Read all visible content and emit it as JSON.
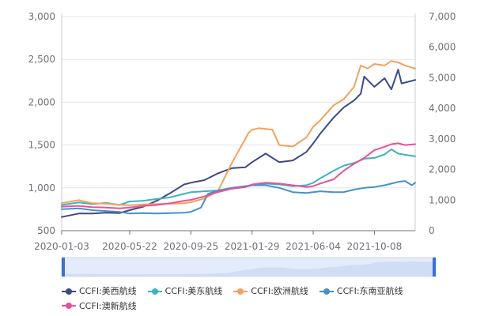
{
  "chart_data": {
    "type": "line",
    "x_start": "2020-01-03",
    "x_end": "2021-12-31",
    "x_ticks": [
      "2020-01-03",
      "2020-05-22",
      "2020-09-25",
      "2021-01-29",
      "2021-06-04",
      "2021-10-08"
    ],
    "y_left": {
      "min": 500,
      "max": 3000,
      "ticks": [
        "500",
        "1,000",
        "1,500",
        "2,000",
        "2,500",
        "3,000"
      ]
    },
    "y_right": {
      "min": 0,
      "max": 7000,
      "ticks": [
        "0",
        "1,000",
        "2,000",
        "3,000",
        "4,000",
        "5,000",
        "6,000",
        "7,000"
      ]
    },
    "grid": true,
    "legend_position": "bottom",
    "series": [
      {
        "name": "CCFI:美西航线",
        "axis": "left",
        "color": "#3d4a86",
        "points": [
          [
            "2020-01-03",
            660
          ],
          [
            "2020-02-07",
            700
          ],
          [
            "2020-03-06",
            700
          ],
          [
            "2020-04-03",
            710
          ],
          [
            "2020-05-01",
            705
          ],
          [
            "2020-05-22",
            740
          ],
          [
            "2020-06-19",
            780
          ],
          [
            "2020-07-17",
            850
          ],
          [
            "2020-08-14",
            940
          ],
          [
            "2020-09-11",
            1040
          ],
          [
            "2020-09-25",
            1060
          ],
          [
            "2020-10-23",
            1090
          ],
          [
            "2020-11-20",
            1170
          ],
          [
            "2020-12-18",
            1230
          ],
          [
            "2021-01-15",
            1240
          ],
          [
            "2021-01-29",
            1300
          ],
          [
            "2021-02-26",
            1400
          ],
          [
            "2021-03-12",
            1350
          ],
          [
            "2021-03-26",
            1300
          ],
          [
            "2021-04-23",
            1320
          ],
          [
            "2021-05-21",
            1420
          ],
          [
            "2021-06-04",
            1520
          ],
          [
            "2021-06-18",
            1630
          ],
          [
            "2021-07-16",
            1820
          ],
          [
            "2021-08-06",
            1940
          ],
          [
            "2021-08-27",
            2020
          ],
          [
            "2021-09-10",
            2100
          ],
          [
            "2021-09-17",
            2300
          ],
          [
            "2021-10-08",
            2180
          ],
          [
            "2021-10-29",
            2280
          ],
          [
            "2021-11-12",
            2150
          ],
          [
            "2021-11-26",
            2380
          ],
          [
            "2021-12-03",
            2220
          ],
          [
            "2021-12-31",
            2260
          ]
        ]
      },
      {
        "name": "CCFI:美东航线",
        "axis": "left",
        "color": "#3fb1c1",
        "points": [
          [
            "2020-01-03",
            800
          ],
          [
            "2020-02-07",
            830
          ],
          [
            "2020-03-06",
            810
          ],
          [
            "2020-04-03",
            825
          ],
          [
            "2020-05-01",
            800
          ],
          [
            "2020-05-22",
            840
          ],
          [
            "2020-06-19",
            850
          ],
          [
            "2020-07-17",
            870
          ],
          [
            "2020-08-14",
            890
          ],
          [
            "2020-09-11",
            930
          ],
          [
            "2020-09-25",
            950
          ],
          [
            "2020-10-23",
            960
          ],
          [
            "2020-11-20",
            970
          ],
          [
            "2020-12-18",
            990
          ],
          [
            "2021-01-15",
            1010
          ],
          [
            "2021-01-29",
            1030
          ],
          [
            "2021-02-26",
            1050
          ],
          [
            "2021-03-26",
            1040
          ],
          [
            "2021-04-23",
            1020
          ],
          [
            "2021-05-21",
            1030
          ],
          [
            "2021-06-04",
            1060
          ],
          [
            "2021-06-18",
            1110
          ],
          [
            "2021-07-16",
            1200
          ],
          [
            "2021-08-06",
            1260
          ],
          [
            "2021-08-27",
            1290
          ],
          [
            "2021-09-17",
            1340
          ],
          [
            "2021-10-08",
            1350
          ],
          [
            "2021-10-29",
            1390
          ],
          [
            "2021-11-12",
            1450
          ],
          [
            "2021-11-26",
            1400
          ],
          [
            "2021-12-17",
            1380
          ],
          [
            "2021-12-31",
            1370
          ]
        ]
      },
      {
        "name": "CCFI:欧洲航线",
        "axis": "right",
        "color": "#f2a25c",
        "points": [
          [
            "2020-01-03",
            900
          ],
          [
            "2020-02-07",
            1000
          ],
          [
            "2020-03-06",
            900
          ],
          [
            "2020-04-03",
            880
          ],
          [
            "2020-05-01",
            850
          ],
          [
            "2020-05-22",
            830
          ],
          [
            "2020-06-19",
            860
          ],
          [
            "2020-07-17",
            870
          ],
          [
            "2020-08-14",
            880
          ],
          [
            "2020-09-11",
            900
          ],
          [
            "2020-09-25",
            930
          ],
          [
            "2020-10-23",
            1050
          ],
          [
            "2020-11-20",
            1300
          ],
          [
            "2020-12-18",
            2200
          ],
          [
            "2021-01-08",
            2800
          ],
          [
            "2021-01-22",
            3200
          ],
          [
            "2021-01-29",
            3300
          ],
          [
            "2021-02-12",
            3350
          ],
          [
            "2021-03-12",
            3300
          ],
          [
            "2021-03-26",
            2800
          ],
          [
            "2021-04-23",
            2750
          ],
          [
            "2021-05-21",
            3050
          ],
          [
            "2021-06-04",
            3400
          ],
          [
            "2021-06-18",
            3600
          ],
          [
            "2021-07-16",
            4100
          ],
          [
            "2021-08-06",
            4300
          ],
          [
            "2021-08-27",
            4700
          ],
          [
            "2021-09-10",
            5400
          ],
          [
            "2021-09-24",
            5300
          ],
          [
            "2021-10-08",
            5450
          ],
          [
            "2021-10-29",
            5400
          ],
          [
            "2021-11-12",
            5550
          ],
          [
            "2021-11-26",
            5500
          ],
          [
            "2021-12-10",
            5400
          ],
          [
            "2021-12-31",
            5300
          ]
        ]
      },
      {
        "name": "CCFI:东南亚航线",
        "axis": "left",
        "color": "#4890c9",
        "points": [
          [
            "2020-01-03",
            750
          ],
          [
            "2020-02-07",
            760
          ],
          [
            "2020-03-06",
            740
          ],
          [
            "2020-04-03",
            730
          ],
          [
            "2020-05-01",
            720
          ],
          [
            "2020-05-22",
            700
          ],
          [
            "2020-06-19",
            705
          ],
          [
            "2020-07-17",
            700
          ],
          [
            "2020-08-14",
            705
          ],
          [
            "2020-09-11",
            710
          ],
          [
            "2020-09-25",
            720
          ],
          [
            "2020-10-16",
            770
          ],
          [
            "2020-10-30",
            930
          ],
          [
            "2020-11-20",
            970
          ],
          [
            "2020-12-18",
            1000
          ],
          [
            "2021-01-15",
            1020
          ],
          [
            "2021-01-29",
            1030
          ],
          [
            "2021-02-26",
            1030
          ],
          [
            "2021-03-26",
            1000
          ],
          [
            "2021-04-23",
            950
          ],
          [
            "2021-05-21",
            940
          ],
          [
            "2021-06-04",
            950
          ],
          [
            "2021-06-18",
            960
          ],
          [
            "2021-07-16",
            950
          ],
          [
            "2021-08-06",
            950
          ],
          [
            "2021-08-27",
            980
          ],
          [
            "2021-09-17",
            1000
          ],
          [
            "2021-10-08",
            1010
          ],
          [
            "2021-10-29",
            1030
          ],
          [
            "2021-11-12",
            1050
          ],
          [
            "2021-11-26",
            1070
          ],
          [
            "2021-12-10",
            1080
          ],
          [
            "2021-12-24",
            1030
          ],
          [
            "2021-12-31",
            1060
          ]
        ]
      },
      {
        "name": "CCFI:澳新航线",
        "axis": "left",
        "color": "#e8529a",
        "points": [
          [
            "2020-01-03",
            780
          ],
          [
            "2020-02-07",
            790
          ],
          [
            "2020-03-06",
            775
          ],
          [
            "2020-04-03",
            770
          ],
          [
            "2020-05-01",
            760
          ],
          [
            "2020-05-22",
            770
          ],
          [
            "2020-06-19",
            790
          ],
          [
            "2020-07-17",
            800
          ],
          [
            "2020-08-14",
            820
          ],
          [
            "2020-09-11",
            850
          ],
          [
            "2020-09-25",
            860
          ],
          [
            "2020-10-23",
            900
          ],
          [
            "2020-11-20",
            950
          ],
          [
            "2020-12-18",
            990
          ],
          [
            "2021-01-15",
            1010
          ],
          [
            "2021-01-29",
            1040
          ],
          [
            "2021-02-26",
            1060
          ],
          [
            "2021-03-26",
            1050
          ],
          [
            "2021-04-23",
            1030
          ],
          [
            "2021-05-21",
            1010
          ],
          [
            "2021-06-04",
            1020
          ],
          [
            "2021-06-18",
            1050
          ],
          [
            "2021-07-16",
            1100
          ],
          [
            "2021-08-06",
            1200
          ],
          [
            "2021-08-27",
            1280
          ],
          [
            "2021-09-17",
            1350
          ],
          [
            "2021-10-08",
            1440
          ],
          [
            "2021-10-29",
            1480
          ],
          [
            "2021-11-12",
            1510
          ],
          [
            "2021-11-26",
            1520
          ],
          [
            "2021-12-10",
            1500
          ],
          [
            "2021-12-31",
            1510
          ]
        ]
      }
    ]
  },
  "data_zoom": {
    "range_start_pct": 0,
    "range_end_pct": 100
  }
}
